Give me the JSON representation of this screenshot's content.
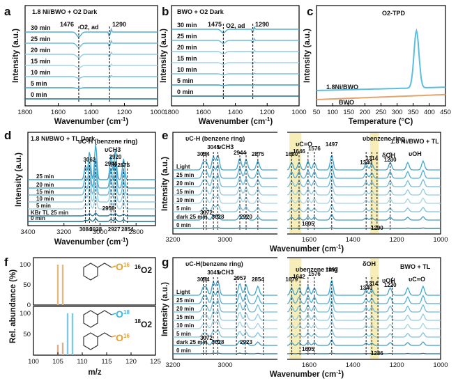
{
  "panel_labels": [
    "a",
    "b",
    "c",
    "d",
    "e",
    "f",
    "g"
  ],
  "chart_data": [
    {
      "id": "a",
      "type": "line",
      "title": "1.8 Ni/BWO + O2 Dark",
      "xlabel": "Wavenumber (cm-1)",
      "ylabel": "Intensity (a.u.)",
      "xlim": [
        1800,
        1000
      ],
      "xticks": [
        "1800",
        "1600",
        "1400",
        "1200",
        "1000"
      ],
      "series_labels": [
        "0 min",
        "5 min",
        "10 min",
        "15 min",
        "20 min",
        "25 min",
        "30 min"
      ],
      "annotations": [
        "1476",
        "O2, ad",
        "1290"
      ],
      "marks": [
        1476,
        1290
      ]
    },
    {
      "id": "b",
      "type": "line",
      "title": "BWO + O2 Dark",
      "xlabel": "Wavenumber (cm-1)",
      "ylabel": "Intensity (a.u.)",
      "xlim": [
        1800,
        1000
      ],
      "xticks": [
        "1800",
        "1600",
        "1400",
        "1200",
        "1000"
      ],
      "series_labels": [
        "0 min",
        "5 min",
        "10 min",
        "15 min",
        "20 min",
        "25 min",
        "30 min"
      ],
      "annotations": [
        "1475",
        "O2, ad",
        "1290"
      ],
      "marks": [
        1475,
        1290
      ]
    },
    {
      "id": "c",
      "type": "line",
      "title": "O2-TPD",
      "xlabel": "Temperature (°C)",
      "ylabel": "Intensity (a.u.)",
      "xlim": [
        50,
        450
      ],
      "xticks": [
        "50",
        "100",
        "150",
        "200",
        "250",
        "300",
        "350",
        "400",
        "450"
      ],
      "series": [
        {
          "name": "1.8Ni/BWO",
          "color": "#5bbde0",
          "peak_x": 360
        },
        {
          "name": "BWO",
          "color": "#e3a36c"
        }
      ]
    },
    {
      "id": "d",
      "type": "line",
      "title": "1.8 Ni/BWO + TL Dark",
      "xlabel": "Wavenumber (cm-1)",
      "ylabel": "Intensity (a.u.)",
      "xlim": [
        3400,
        2700
      ],
      "xticks": [
        "3400",
        "3200",
        "3000",
        "2800"
      ],
      "series_labels": [
        "0 min",
        "KBr TL 25 min",
        "5 min",
        "10 min",
        "15 min",
        "20 min",
        "25 min"
      ],
      "group_labels": [
        "υC-H (benzene ring)",
        "υCH3"
      ],
      "peaks_top": [
        "3062",
        "2944",
        "2920",
        "2875"
      ],
      "peaks_mid": [
        "2958"
      ],
      "peaks_bottom": [
        "3084",
        "3028",
        "2927",
        "2854"
      ],
      "marks": [
        3084,
        3062,
        3028,
        2944,
        2927,
        2920,
        2875,
        2854
      ]
    },
    {
      "id": "e",
      "type": "line",
      "title": "1.8 Ni/BWO + TL",
      "xlabel": "Wavenumber (cm-1)",
      "ylabel": "Intensity (a.u.)",
      "xticks_left": [
        "3200",
        "3000"
      ],
      "xticks_right": [
        "1600",
        "1400",
        "1200",
        "1000"
      ],
      "series_labels": [
        "0 min",
        "dark 25 min",
        "5 min",
        "10 min",
        "15 min",
        "20 min",
        "25 min",
        "Light"
      ],
      "group_labels": [
        "υC-H (benzene ring)",
        "υCH3",
        "υC=O",
        "υbenzene ring",
        "δOH",
        "υOH"
      ],
      "peaks": [
        "3084",
        "3045",
        "2944",
        "2875",
        "3072",
        "3028",
        "2920",
        "1680",
        "1646",
        "1576",
        "1497",
        "1340",
        "1314",
        "1230",
        "1605",
        "1290"
      ],
      "highlight_color": "#f4e7a0",
      "marks": [
        3084,
        3072,
        3045,
        3028,
        2944,
        2920,
        2875,
        1680,
        1646,
        1605,
        1576,
        1497,
        1340,
        1314,
        1290,
        1230
      ]
    },
    {
      "id": "f",
      "type": "bar",
      "xlabel": "m/z",
      "ylabel": "Rel. abundance (%)",
      "xlim": [
        100,
        125
      ],
      "ylim_top": [
        0,
        100
      ],
      "xticks": [
        "100",
        "105",
        "110",
        "115",
        "120",
        "125"
      ],
      "yticks_top": [
        "0",
        "50",
        "100"
      ],
      "yticks_bottom": [
        "50",
        "100"
      ],
      "top": {
        "label": "16O2",
        "sup": "16",
        "sub": "O2",
        "bars": [
          {
            "x": 105,
            "y": 100,
            "color": "#e6b87f"
          },
          {
            "x": 106,
            "y": 100,
            "color": "#e6b87f"
          }
        ]
      },
      "bottom": {
        "label": "18O2",
        "sup": "18",
        "sub": "O2",
        "bars": [
          {
            "x": 105,
            "y": 25,
            "color": "#d9b08c"
          },
          {
            "x": 106,
            "y": 30,
            "color": "#d9b08c"
          },
          {
            "x": 107,
            "y": 100,
            "color": "#7ec8e3"
          },
          {
            "x": 108,
            "y": 100,
            "color": "#7ec8e3"
          }
        ]
      },
      "oxygen_labels": [
        "O",
        "16",
        "O",
        "18",
        "O",
        "16"
      ]
    },
    {
      "id": "g",
      "type": "line",
      "title": "BWO + TL",
      "xlabel": "Wavenumber (cm-1)",
      "ylabel": "Intensity (a.u.)",
      "xticks_left": [
        "3200",
        "3000"
      ],
      "xticks_right": [
        "1600",
        "1400",
        "1200",
        "1000"
      ],
      "series_labels": [
        "0 min",
        "dark 25 min",
        "5 min",
        "10 min",
        "15 min",
        "20 min",
        "25 min",
        "Light"
      ],
      "group_labels": [
        "υC-H(benzene ring)",
        "υCH3",
        "υbenzene ring",
        "δOH",
        "υOH",
        "υC=O"
      ],
      "peaks": [
        "3084",
        "3045",
        "2957",
        "2854",
        "3072",
        "3028",
        "2923",
        "1679",
        "1642",
        "1576",
        "1497",
        "1340",
        "1314",
        "1220",
        "1605",
        "1286"
      ],
      "marks": [
        3084,
        3072,
        3045,
        3028,
        2957,
        2923,
        2854,
        1679,
        1642,
        1605,
        1576,
        1497,
        1340,
        1314,
        1286,
        1220
      ]
    }
  ]
}
